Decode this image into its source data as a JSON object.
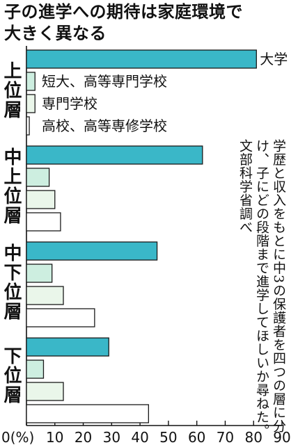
{
  "title": {
    "line1": "子の進学への期待は家庭環境で",
    "line2": "大きく異なる"
  },
  "note": "学歴と収入をもとに中3の保護者を四つの層に分け、子にどの段階まで進学してほしいか尋ねた。文部科学省調べ",
  "chart_data": {
    "type": "bar",
    "orientation": "horizontal",
    "categories": [
      "上位層",
      "中上位層",
      "中下位層",
      "下位層"
    ],
    "series": [
      {
        "name": "大学",
        "color": "#3ab7c8",
        "values": [
          81,
          62,
          46,
          29
        ]
      },
      {
        "name": "短大、高等専門学校",
        "color": "#cdeee0",
        "values": [
          3,
          8,
          9,
          6
        ]
      },
      {
        "name": "専門学校",
        "color": "#eaf6ea",
        "values": [
          3,
          10,
          13,
          13
        ]
      },
      {
        "name": "高校、高等専修学校",
        "color": "#ffffff",
        "values": [
          1,
          12,
          24,
          43
        ]
      }
    ],
    "xlim": [
      0,
      90
    ],
    "xticks": [
      0,
      10,
      20,
      30,
      40,
      50,
      60,
      70,
      80,
      90
    ],
    "xtick_labels": [
      "0(%)",
      "10",
      "20",
      "30",
      "40",
      "50",
      "60",
      "70",
      "80",
      "90"
    ],
    "grid": false,
    "legend": "inline-top-group"
  }
}
